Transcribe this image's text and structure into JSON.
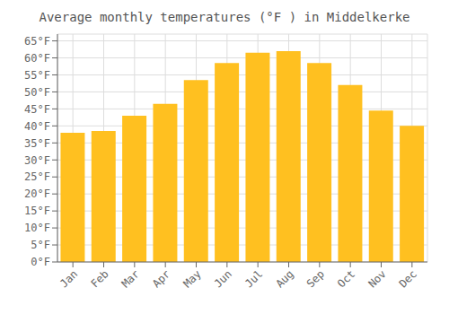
{
  "chart_data": {
    "type": "bar",
    "title": "Average monthly temperatures (°F ) in Middelkerke",
    "categories": [
      "Jan",
      "Feb",
      "Mar",
      "Apr",
      "May",
      "Jun",
      "Jul",
      "Aug",
      "Sep",
      "Oct",
      "Nov",
      "Dec"
    ],
    "values": [
      38,
      38.5,
      43,
      46.5,
      53.5,
      58.5,
      61.5,
      62,
      58.5,
      52,
      44.5,
      40
    ],
    "color": "#FFC020",
    "ylim": [
      0,
      67
    ],
    "yticks": [
      {
        "value": 0,
        "label": "0°F"
      },
      {
        "value": 5,
        "label": "5°F"
      },
      {
        "value": 10,
        "label": "10°F"
      },
      {
        "value": 15,
        "label": "15°F"
      },
      {
        "value": 20,
        "label": "20°F"
      },
      {
        "value": 25,
        "label": "25°F"
      },
      {
        "value": 30,
        "label": "30°F"
      },
      {
        "value": 35,
        "label": "35°F"
      },
      {
        "value": 40,
        "label": "40°F"
      },
      {
        "value": 45,
        "label": "45°F"
      },
      {
        "value": 50,
        "label": "50°F"
      },
      {
        "value": 55,
        "label": "55°F"
      },
      {
        "value": 60,
        "label": "60°F"
      },
      {
        "value": 65,
        "label": "65°F"
      }
    ],
    "grid": true
  }
}
